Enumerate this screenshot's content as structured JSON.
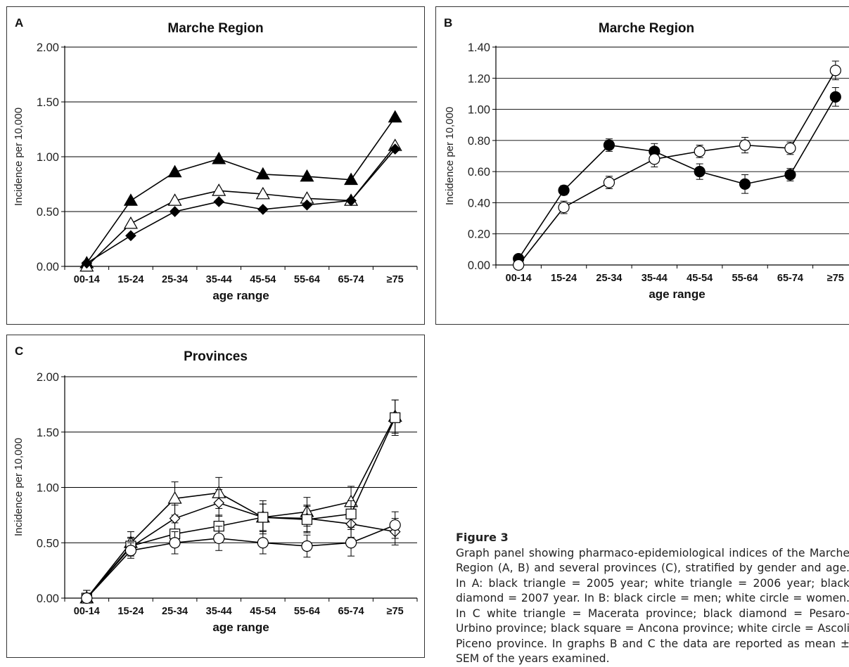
{
  "chart_data": [
    {
      "id": "A",
      "panel_letter": "A",
      "title": "Marche Region",
      "type": "line",
      "xlabel": "age range",
      "ylabel": "Incidence per 10,000",
      "categories": [
        "00-14",
        "15-24",
        "25-34",
        "35-44",
        "45-54",
        "55-64",
        "65-74",
        "≥75"
      ],
      "ylim": [
        0,
        2.0
      ],
      "yticks": [
        "0.00",
        "0.50",
        "1.00",
        "1.50",
        "2.00"
      ],
      "grid": true,
      "series": [
        {
          "marker": "triangle",
          "fill": "black",
          "values": [
            0.03,
            0.6,
            0.86,
            0.98,
            0.84,
            0.82,
            0.79,
            1.36
          ]
        },
        {
          "marker": "triangle",
          "fill": "white",
          "values": [
            0.0,
            0.39,
            0.6,
            0.69,
            0.66,
            0.62,
            0.6,
            1.1
          ]
        },
        {
          "marker": "diamond",
          "fill": "black",
          "values": [
            0.03,
            0.28,
            0.5,
            0.59,
            0.52,
            0.56,
            0.6,
            1.07
          ]
        }
      ]
    },
    {
      "id": "B",
      "panel_letter": "B",
      "title": "Marche Region",
      "type": "line",
      "xlabel": "age range",
      "ylabel": "Incidence per 10,000",
      "categories": [
        "00-14",
        "15-24",
        "25-34",
        "35-44",
        "45-54",
        "55-64",
        "65-74",
        "≥75"
      ],
      "ylim": [
        0,
        1.4
      ],
      "yticks": [
        "0.00",
        "0.20",
        "0.40",
        "0.60",
        "0.80",
        "1.00",
        "1.20",
        "1.40"
      ],
      "grid": true,
      "series": [
        {
          "marker": "circle",
          "fill": "black",
          "values": [
            0.04,
            0.48,
            0.77,
            0.73,
            0.6,
            0.52,
            0.58,
            1.08
          ],
          "sem": [
            0.01,
            0.03,
            0.04,
            0.05,
            0.05,
            0.06,
            0.04,
            0.06
          ]
        },
        {
          "marker": "circle",
          "fill": "white",
          "values": [
            0.0,
            0.37,
            0.53,
            0.68,
            0.73,
            0.77,
            0.75,
            1.25
          ],
          "sem": [
            0.01,
            0.04,
            0.04,
            0.05,
            0.04,
            0.05,
            0.04,
            0.06
          ]
        }
      ]
    },
    {
      "id": "C",
      "panel_letter": "C",
      "title": "Provinces",
      "type": "line",
      "xlabel": "age range",
      "ylabel": "Incidence per 10,000",
      "categories": [
        "00-14",
        "15-24",
        "25-34",
        "35-44",
        "45-54",
        "55-64",
        "65-74",
        "≥75"
      ],
      "ylim": [
        0,
        2.0
      ],
      "yticks": [
        "0.00",
        "0.50",
        "1.00",
        "1.50",
        "2.00"
      ],
      "grid": true,
      "series": [
        {
          "marker": "triangle",
          "fill": "white",
          "values": [
            0.0,
            0.5,
            0.9,
            0.95,
            0.73,
            0.78,
            0.87,
            1.64
          ],
          "sem": [
            0.07,
            0.1,
            0.15,
            0.14,
            0.15,
            0.13,
            0.14,
            0.15
          ]
        },
        {
          "marker": "diamond",
          "fill": "white",
          "values": [
            0.0,
            0.46,
            0.72,
            0.86,
            0.73,
            0.72,
            0.67,
            0.6
          ],
          "sem": [
            0.07,
            0.08,
            0.12,
            0.12,
            0.12,
            0.12,
            0.12,
            0.12
          ]
        },
        {
          "marker": "square",
          "fill": "white",
          "values": [
            0.0,
            0.47,
            0.58,
            0.65,
            0.73,
            0.71,
            0.76,
            1.63
          ],
          "sem": [
            0.07,
            0.08,
            0.1,
            0.1,
            0.12,
            0.12,
            0.12,
            0.16
          ]
        },
        {
          "marker": "circle",
          "fill": "white",
          "values": [
            0.0,
            0.43,
            0.5,
            0.54,
            0.5,
            0.47,
            0.5,
            0.66
          ],
          "sem": [
            0.07,
            0.07,
            0.1,
            0.11,
            0.1,
            0.1,
            0.12,
            0.12
          ]
        }
      ]
    }
  ],
  "caption": {
    "title": "Figure 3",
    "text": "Graph panel showing pharmaco-epidemiological indices of the Marche Region (A, B) and several provinces (C), stratified by gender and age. In A: black triangle = 2005 year; white triangle = 2006 year; black diamond = 2007 year. In B: black circle = men; white circle = women. In C white triangle = Macerata province; black diamond = Pesaro-Urbino province; black square = Ancona province; white circle = Ascoli Piceno province. In graphs B and C the data are reported as mean ± SEM of the years examined."
  }
}
